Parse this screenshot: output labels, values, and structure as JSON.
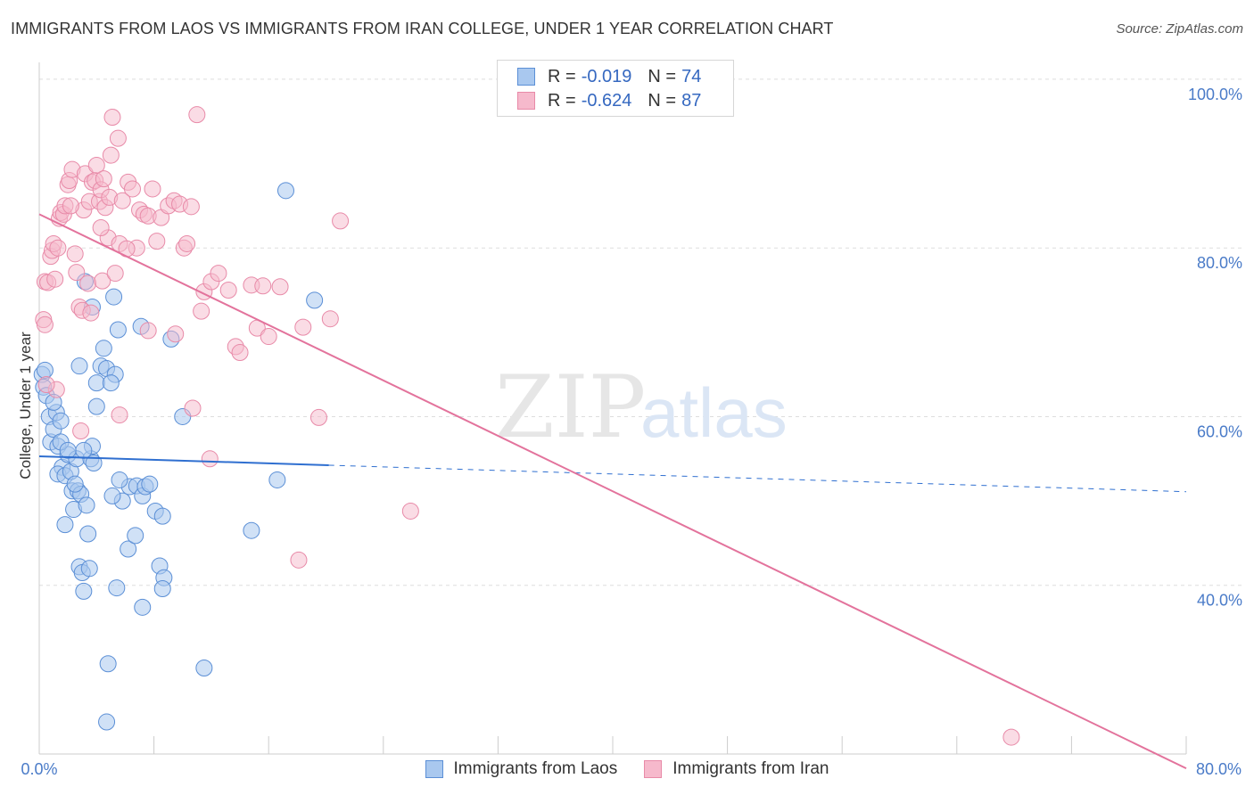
{
  "title": "IMMIGRANTS FROM LAOS VS IMMIGRANTS FROM IRAN COLLEGE, UNDER 1 YEAR CORRELATION CHART",
  "source": "Source: ZipAtlas.com",
  "watermark": {
    "zip": "ZIP",
    "atlas": "atlas"
  },
  "colors": {
    "laos_fill": "#a9c8ef",
    "laos_stroke": "#5b8fd6",
    "laos_line": "#2f6fd0",
    "iran_fill": "#f6b9cc",
    "iran_stroke": "#e88aa8",
    "iran_line": "#e3739c",
    "grid": "#dddddd",
    "tick_text": "#4a7bc8"
  },
  "legend": {
    "rows": [
      {
        "r_label": "R =",
        "r_value": "-0.019",
        "n_label": "N =",
        "n_value": "74"
      },
      {
        "r_label": "R =",
        "r_value": "-0.624",
        "n_label": "N =",
        "n_value": "87"
      }
    ]
  },
  "chart_data": {
    "type": "scatter",
    "title": "IMMIGRANTS FROM LAOS VS IMMIGRANTS FROM IRAN COLLEGE, UNDER 1 YEAR CORRELATION CHART",
    "xlabel": "",
    "ylabel": "College, Under 1 year",
    "xlim": [
      0,
      80
    ],
    "ylim": [
      20,
      102
    ],
    "x_tick_labels": [
      "0.0%",
      "80.0%"
    ],
    "y_ticks": [
      40,
      60,
      80,
      100
    ],
    "y_tick_labels": [
      "40.0%",
      "60.0%",
      "80.0%",
      "100.0%"
    ],
    "legend_position": "bottom",
    "series": [
      {
        "name": "Immigrants from Laos",
        "r": -0.019,
        "n": 74,
        "trend": {
          "x0": 0,
          "y0": 55.3,
          "x1": 80,
          "y1": 51.1,
          "solid_until_x": 20.2
        },
        "points": [
          [
            0.2,
            65.0
          ],
          [
            0.3,
            63.5
          ],
          [
            0.5,
            62.5
          ],
          [
            0.7,
            60.0
          ],
          [
            0.8,
            57.0
          ],
          [
            1.0,
            58.5
          ],
          [
            1.2,
            60.5
          ],
          [
            1.3,
            56.5
          ],
          [
            1.5,
            59.5
          ],
          [
            1.6,
            54.0
          ],
          [
            1.3,
            53.2
          ],
          [
            1.8,
            53.0
          ],
          [
            2.0,
            55.5
          ],
          [
            2.2,
            53.5
          ],
          [
            2.3,
            51.2
          ],
          [
            2.4,
            49.0
          ],
          [
            2.6,
            55.0
          ],
          [
            2.7,
            51.2
          ],
          [
            2.9,
            50.8
          ],
          [
            3.3,
            49.5
          ],
          [
            1.8,
            47.2
          ],
          [
            2.8,
            42.2
          ],
          [
            3.0,
            41.5
          ],
          [
            3.5,
            42.0
          ],
          [
            3.4,
            46.1
          ],
          [
            3.6,
            55.0
          ],
          [
            3.7,
            56.5
          ],
          [
            3.1,
            56.0
          ],
          [
            2.8,
            66.0
          ],
          [
            4.3,
            66.0
          ],
          [
            4.0,
            64.0
          ],
          [
            4.5,
            68.1
          ],
          [
            4.7,
            65.7
          ],
          [
            5.3,
            65.0
          ],
          [
            5.0,
            64.0
          ],
          [
            3.7,
            73.0
          ],
          [
            3.2,
            76.0
          ],
          [
            5.2,
            74.2
          ],
          [
            5.5,
            70.3
          ],
          [
            7.1,
            70.7
          ],
          [
            4.0,
            61.2
          ],
          [
            5.8,
            50.0
          ],
          [
            6.3,
            51.7
          ],
          [
            6.8,
            51.8
          ],
          [
            7.2,
            50.6
          ],
          [
            7.4,
            51.7
          ],
          [
            5.1,
            50.6
          ],
          [
            6.2,
            44.3
          ],
          [
            6.7,
            45.9
          ],
          [
            8.1,
            48.8
          ],
          [
            8.6,
            48.2
          ],
          [
            8.4,
            42.3
          ],
          [
            8.7,
            40.9
          ],
          [
            8.6,
            39.6
          ],
          [
            7.2,
            37.4
          ],
          [
            5.4,
            39.7
          ],
          [
            3.1,
            39.3
          ],
          [
            4.8,
            30.7
          ],
          [
            11.5,
            30.2
          ],
          [
            4.7,
            23.8
          ],
          [
            9.2,
            69.2
          ],
          [
            10.0,
            60.0
          ],
          [
            14.8,
            46.5
          ],
          [
            16.6,
            52.5
          ],
          [
            17.2,
            86.8
          ],
          [
            19.2,
            73.8
          ],
          [
            0.4,
            65.5
          ],
          [
            1.0,
            61.7
          ],
          [
            1.5,
            57.0
          ],
          [
            2.0,
            56.0
          ],
          [
            2.5,
            52.0
          ],
          [
            3.8,
            54.5
          ],
          [
            5.6,
            52.5
          ],
          [
            7.7,
            52.0
          ]
        ]
      },
      {
        "name": "Immigrants from Iran",
        "r": -0.624,
        "n": 87,
        "trend": {
          "x0": 0,
          "y0": 84.0,
          "x1": 80,
          "y1": 18.3
        },
        "points": [
          [
            0.3,
            71.5
          ],
          [
            0.4,
            70.9
          ],
          [
            0.4,
            76.0
          ],
          [
            0.6,
            75.9
          ],
          [
            0.8,
            79.0
          ],
          [
            0.9,
            79.7
          ],
          [
            1.0,
            80.5
          ],
          [
            1.1,
            76.3
          ],
          [
            1.3,
            80.0
          ],
          [
            1.4,
            83.5
          ],
          [
            1.5,
            84.2
          ],
          [
            1.7,
            84.0
          ],
          [
            1.8,
            85.0
          ],
          [
            2.0,
            87.5
          ],
          [
            2.1,
            88.0
          ],
          [
            2.3,
            89.3
          ],
          [
            2.5,
            79.3
          ],
          [
            2.6,
            77.1
          ],
          [
            2.8,
            73.0
          ],
          [
            3.0,
            72.6
          ],
          [
            3.1,
            84.5
          ],
          [
            3.2,
            88.8
          ],
          [
            3.4,
            75.8
          ],
          [
            3.5,
            85.5
          ],
          [
            3.7,
            87.8
          ],
          [
            3.9,
            88.0
          ],
          [
            4.0,
            89.8
          ],
          [
            4.2,
            85.5
          ],
          [
            4.3,
            86.9
          ],
          [
            4.4,
            76.1
          ],
          [
            4.5,
            88.2
          ],
          [
            4.6,
            84.8
          ],
          [
            4.8,
            81.2
          ],
          [
            4.9,
            86.0
          ],
          [
            5.0,
            91.0
          ],
          [
            5.1,
            95.5
          ],
          [
            5.3,
            77.0
          ],
          [
            5.5,
            93.0
          ],
          [
            5.6,
            80.5
          ],
          [
            5.8,
            85.6
          ],
          [
            6.2,
            87.8
          ],
          [
            6.5,
            87.0
          ],
          [
            6.8,
            80.0
          ],
          [
            7.0,
            84.5
          ],
          [
            7.3,
            84.0
          ],
          [
            7.6,
            83.8
          ],
          [
            7.9,
            87.0
          ],
          [
            8.2,
            80.8
          ],
          [
            8.5,
            83.6
          ],
          [
            9.0,
            85.0
          ],
          [
            9.4,
            85.6
          ],
          [
            9.8,
            85.2
          ],
          [
            10.1,
            80.0
          ],
          [
            10.3,
            80.5
          ],
          [
            10.6,
            84.9
          ],
          [
            11.0,
            95.8
          ],
          [
            11.3,
            72.5
          ],
          [
            11.5,
            74.8
          ],
          [
            12.0,
            76.0
          ],
          [
            12.5,
            77.0
          ],
          [
            13.2,
            75.0
          ],
          [
            13.7,
            68.3
          ],
          [
            14.0,
            67.6
          ],
          [
            14.8,
            75.6
          ],
          [
            15.2,
            70.5
          ],
          [
            15.6,
            75.5
          ],
          [
            16.0,
            69.5
          ],
          [
            16.8,
            75.4
          ],
          [
            18.4,
            70.6
          ],
          [
            19.5,
            59.9
          ],
          [
            20.3,
            71.6
          ],
          [
            21.0,
            83.2
          ],
          [
            10.7,
            61.0
          ],
          [
            9.5,
            69.8
          ],
          [
            11.9,
            55.0
          ],
          [
            5.6,
            60.2
          ],
          [
            2.9,
            58.3
          ],
          [
            1.2,
            63.2
          ],
          [
            0.5,
            63.8
          ],
          [
            3.6,
            72.3
          ],
          [
            4.3,
            82.4
          ],
          [
            7.6,
            70.2
          ],
          [
            6.1,
            79.9
          ],
          [
            18.1,
            43.0
          ],
          [
            25.9,
            48.8
          ],
          [
            67.8,
            22.0
          ],
          [
            2.2,
            85.0
          ]
        ]
      }
    ]
  },
  "bottom_legend": [
    {
      "label": "Immigrants from Laos"
    },
    {
      "label": "Immigrants from Iran"
    }
  ]
}
